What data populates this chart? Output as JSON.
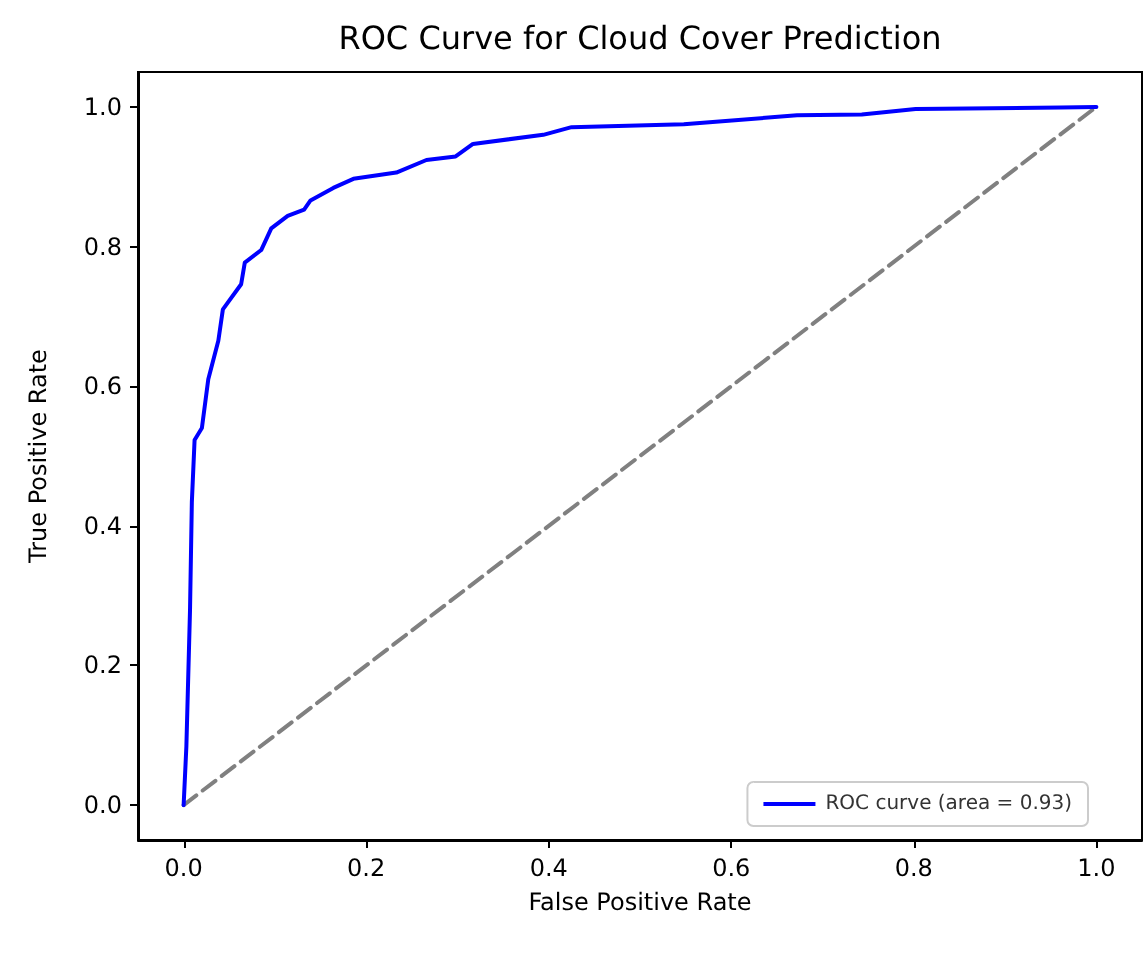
{
  "chart_data": {
    "type": "line",
    "title": "ROC Curve for Cloud Cover Prediction",
    "xlabel": "False Positive Rate",
    "ylabel": "True Positive Rate",
    "xlim": [
      -0.05,
      1.05
    ],
    "ylim": [
      -0.05,
      1.05
    ],
    "xticks": [
      {
        "value": 0,
        "label": "0.0"
      },
      {
        "value": 0.2,
        "label": "0.2"
      },
      {
        "value": 0.4,
        "label": "0.4"
      },
      {
        "value": 0.6,
        "label": "0.6"
      },
      {
        "value": 0.8,
        "label": "0.8"
      },
      {
        "value": 1,
        "label": "1.0"
      }
    ],
    "yticks": [
      {
        "value": 0,
        "label": "0.0"
      },
      {
        "value": 0.2,
        "label": "0.2"
      },
      {
        "value": 0.4,
        "label": "0.4"
      },
      {
        "value": 0.6,
        "label": "0.6"
      },
      {
        "value": 0.8,
        "label": "0.8"
      },
      {
        "value": 1,
        "label": "1.0"
      }
    ],
    "grid": false,
    "legend": "bottom right",
    "marker": "none",
    "series": [
      {
        "name": "ROC curve (area = 0.93)",
        "color": "#0000ff",
        "line_style": "solid",
        "x": [
          0,
          0.003,
          0.007,
          0.009,
          0.012,
          0.02,
          0.027,
          0.038,
          0.043,
          0.063,
          0.067,
          0.085,
          0.096,
          0.114,
          0.132,
          0.139,
          0.164,
          0.186,
          0.233,
          0.266,
          0.298,
          0.317,
          0.394,
          0.425,
          0.548,
          0.672,
          0.743,
          0.802,
          0.961,
          1
        ],
        "values": [
          0,
          0.084,
          0.28,
          0.434,
          0.523,
          0.54,
          0.61,
          0.665,
          0.71,
          0.746,
          0.777,
          0.795,
          0.826,
          0.844,
          0.853,
          0.866,
          0.884,
          0.897,
          0.906,
          0.924,
          0.929,
          0.947,
          0.96,
          0.971,
          0.975,
          0.988,
          0.989,
          0.997,
          0.999,
          1
        ]
      },
      {
        "color": "#808080",
        "line_style": "dashed",
        "x": [
          0,
          1
        ],
        "values": [
          0,
          1
        ]
      }
    ]
  }
}
